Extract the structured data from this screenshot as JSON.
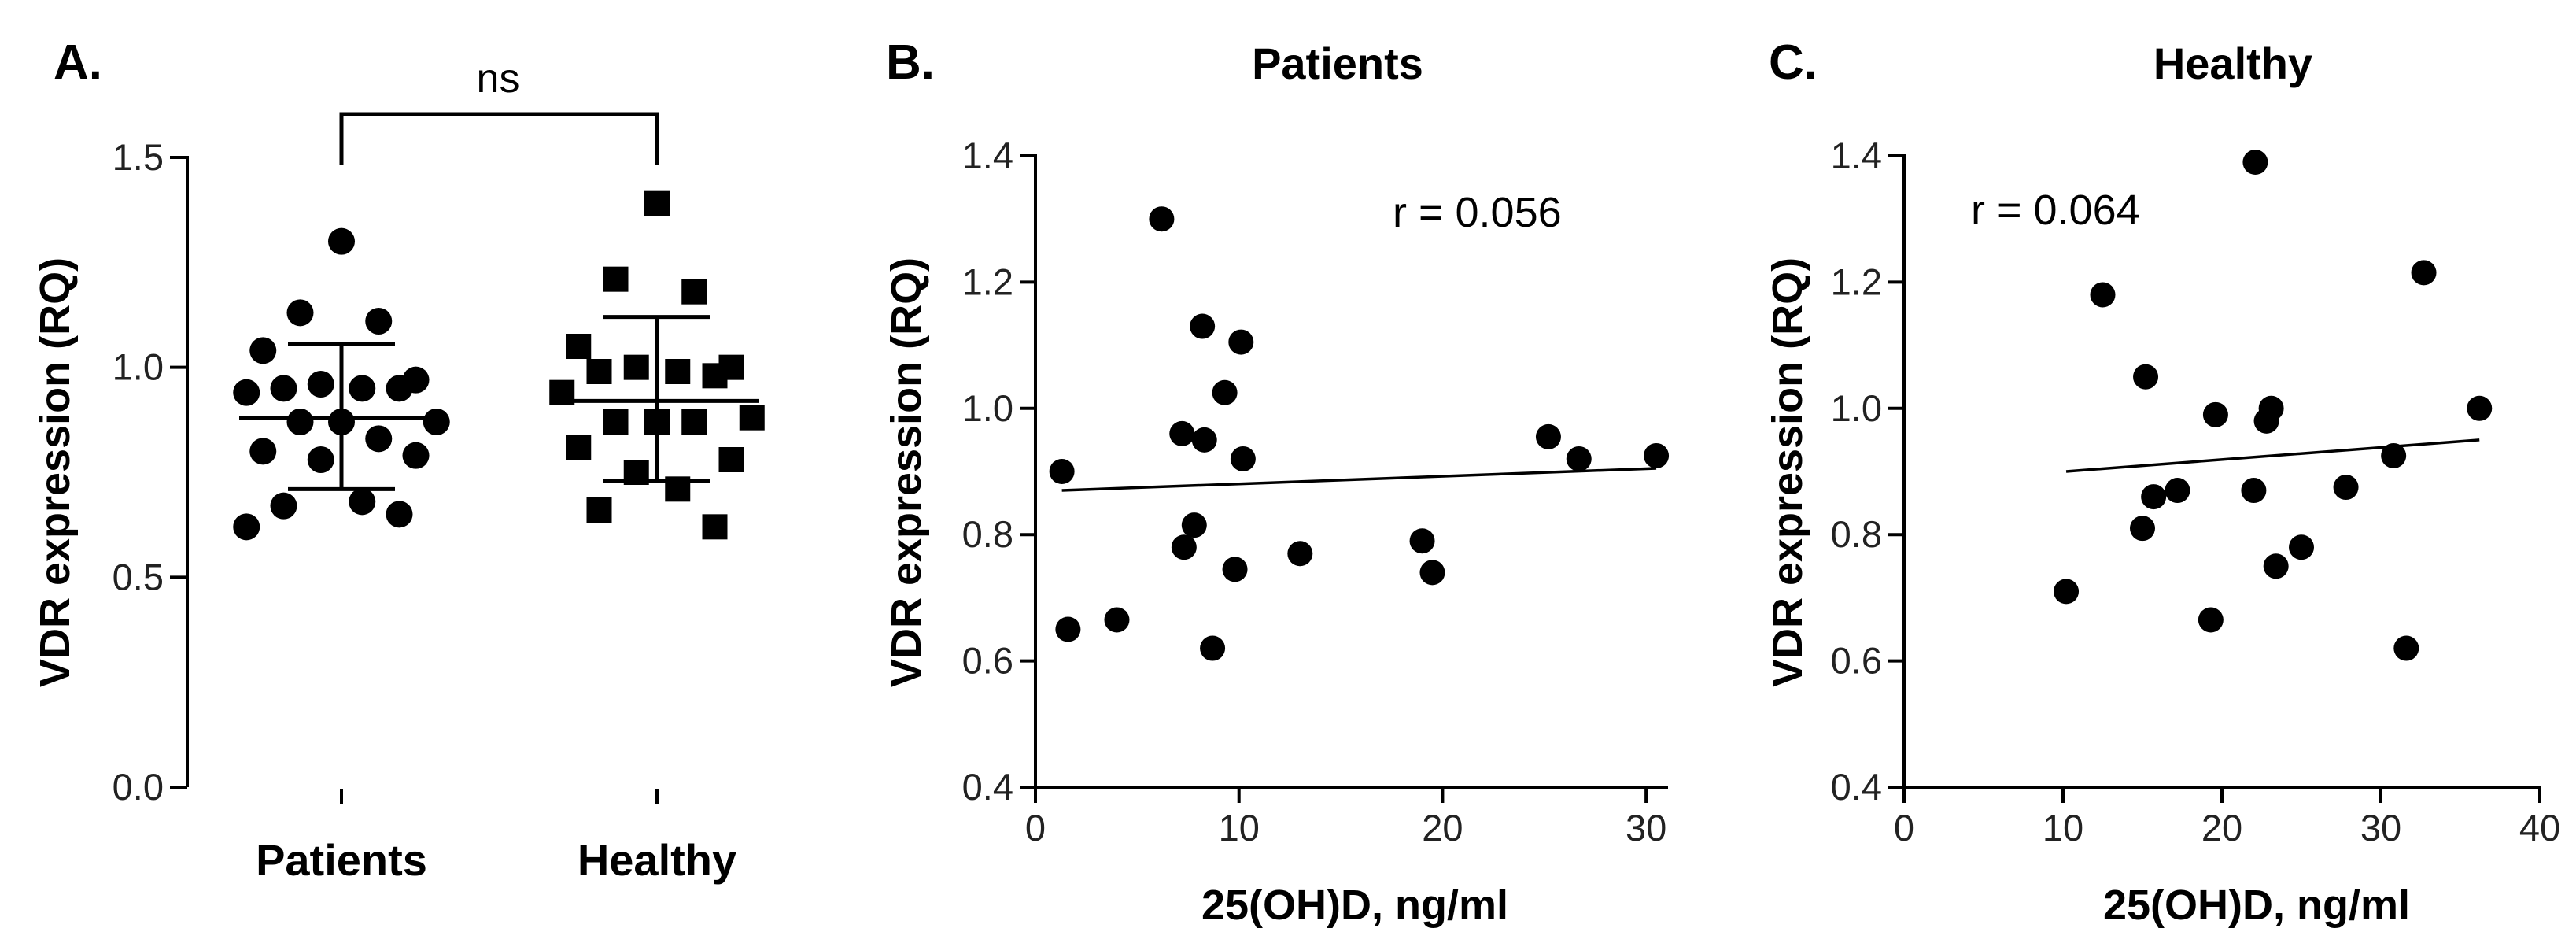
{
  "chart_data": [
    {
      "panel": "A.",
      "type": "scatter",
      "title": "",
      "ylabel": "VDR expression (RQ)",
      "xlabel": "",
      "ylim": [
        0.0,
        1.5
      ],
      "yticks": [
        0.0,
        0.5,
        1.0,
        1.5
      ],
      "ytick_labels": [
        "0.0",
        "0.5",
        "1.0",
        "1.5"
      ],
      "categories": [
        "Patients",
        "Healthy"
      ],
      "significance": "ns",
      "series": [
        {
          "name": "Patients",
          "marker": "circle",
          "mean": 0.88,
          "sd_low": 0.71,
          "sd_high": 1.055,
          "values": [
            1.3,
            1.13,
            1.11,
            1.04,
            0.97,
            0.96,
            0.95,
            0.95,
            0.95,
            0.94,
            0.87,
            0.87,
            0.87,
            0.83,
            0.8,
            0.79,
            0.78,
            0.68,
            0.67,
            0.65,
            0.62
          ]
        },
        {
          "name": "Healthy",
          "marker": "square",
          "mean": 0.92,
          "sd_low": 0.73,
          "sd_high": 1.12,
          "values": [
            1.39,
            1.21,
            1.18,
            1.05,
            1.0,
            1.0,
            0.99,
            0.99,
            0.98,
            0.94,
            0.88,
            0.87,
            0.87,
            0.87,
            0.81,
            0.78,
            0.75,
            0.71,
            0.66,
            0.62
          ]
        }
      ]
    },
    {
      "panel": "B.",
      "type": "scatter",
      "title": "Patients",
      "xlabel": "25(OH)D, ng/ml",
      "ylabel": "VDR expression (RQ)",
      "xlim": [
        0,
        31
      ],
      "ylim": [
        0.4,
        1.4
      ],
      "xticks": [
        0,
        10,
        20,
        30
      ],
      "xtick_labels": [
        "0",
        "10",
        "20",
        "30"
      ],
      "yticks": [
        0.4,
        0.6,
        0.8,
        1.0,
        1.2,
        1.4
      ],
      "ytick_labels": [
        "0.4",
        "0.6",
        "0.8",
        "1.0",
        "1.2",
        "1.4"
      ],
      "annotation": "r = 0.056",
      "fit": {
        "x": [
          1.3,
          30.5
        ],
        "y": [
          0.87,
          0.905
        ]
      },
      "points": [
        {
          "x": 1.3,
          "y": 0.9
        },
        {
          "x": 1.6,
          "y": 0.65
        },
        {
          "x": 4.0,
          "y": 0.665
        },
        {
          "x": 6.2,
          "y": 1.3
        },
        {
          "x": 7.2,
          "y": 0.96
        },
        {
          "x": 7.3,
          "y": 0.78
        },
        {
          "x": 7.8,
          "y": 0.815
        },
        {
          "x": 8.2,
          "y": 1.13
        },
        {
          "x": 8.3,
          "y": 0.95
        },
        {
          "x": 8.7,
          "y": 0.62
        },
        {
          "x": 9.3,
          "y": 1.025
        },
        {
          "x": 9.8,
          "y": 0.745
        },
        {
          "x": 10.1,
          "y": 1.105
        },
        {
          "x": 10.2,
          "y": 0.92
        },
        {
          "x": 13.0,
          "y": 0.77
        },
        {
          "x": 19.0,
          "y": 0.79
        },
        {
          "x": 19.5,
          "y": 0.74
        },
        {
          "x": 25.2,
          "y": 0.955
        },
        {
          "x": 26.7,
          "y": 0.92
        },
        {
          "x": 30.5,
          "y": 0.925
        }
      ]
    },
    {
      "panel": "C.",
      "type": "scatter",
      "title": "Healthy",
      "xlabel": "25(OH)D, ng/ml",
      "ylabel": "VDR expression (RQ)",
      "xlim": [
        0,
        40
      ],
      "ylim": [
        0.4,
        1.4
      ],
      "xticks": [
        0,
        10,
        20,
        30,
        40
      ],
      "xtick_labels": [
        "0",
        "10",
        "20",
        "30",
        "40"
      ],
      "yticks": [
        0.4,
        0.6,
        0.8,
        1.0,
        1.2,
        1.4
      ],
      "ytick_labels": [
        "0.4",
        "0.6",
        "0.8",
        "1.0",
        "1.2",
        "1.4"
      ],
      "annotation": "r = 0.064",
      "fit": {
        "x": [
          10.2,
          36.2
        ],
        "y": [
          0.9,
          0.95
        ]
      },
      "points": [
        {
          "x": 10.2,
          "y": 0.71
        },
        {
          "x": 12.5,
          "y": 1.18
        },
        {
          "x": 15.0,
          "y": 0.81
        },
        {
          "x": 15.2,
          "y": 1.05
        },
        {
          "x": 15.7,
          "y": 0.86
        },
        {
          "x": 17.2,
          "y": 0.87
        },
        {
          "x": 19.3,
          "y": 0.665
        },
        {
          "x": 19.6,
          "y": 0.99
        },
        {
          "x": 22.0,
          "y": 0.87
        },
        {
          "x": 22.1,
          "y": 1.39
        },
        {
          "x": 22.8,
          "y": 0.98
        },
        {
          "x": 23.1,
          "y": 1.0
        },
        {
          "x": 23.4,
          "y": 0.75
        },
        {
          "x": 25.0,
          "y": 0.78
        },
        {
          "x": 27.8,
          "y": 0.875
        },
        {
          "x": 30.8,
          "y": 0.925
        },
        {
          "x": 31.6,
          "y": 0.62
        },
        {
          "x": 32.7,
          "y": 1.215
        },
        {
          "x": 36.2,
          "y": 1.0
        }
      ]
    }
  ]
}
